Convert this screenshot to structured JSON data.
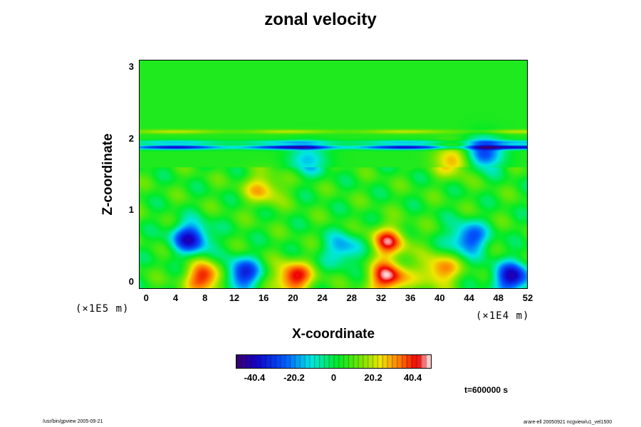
{
  "chart_data": {
    "type": "heatmap",
    "title": "zonal velocity",
    "xlabel": "X-coordinate",
    "ylabel": "Z-coordinate",
    "xlim": [
      -1,
      52
    ],
    "ylim": [
      -0.1,
      3.1
    ],
    "x_ticks": [
      "0",
      "4",
      "8",
      "12",
      "16",
      "20",
      "24",
      "28",
      "32",
      "36",
      "40",
      "44",
      "48",
      "52"
    ],
    "y_ticks": [
      "0",
      "1",
      "2",
      "3"
    ],
    "x_scale_label_left": "(×1E5 m)",
    "x_scale_label_right": "(×1E4 m)",
    "colorbar": {
      "range": [
        -50,
        50
      ],
      "tick_labels": [
        "-40.4",
        "-20.2",
        "0",
        "20.2",
        "40.4"
      ],
      "tick_values": [
        -40.4,
        -20.2,
        0,
        20.2,
        40.4
      ]
    },
    "background_value": 5,
    "features": [
      {
        "x": 6,
        "z": 0.6,
        "value": -38
      },
      {
        "x": 13,
        "z": 0.1,
        "value": -35
      },
      {
        "x": 27,
        "z": 0.45,
        "value": -20
      },
      {
        "x": 33,
        "z": 0.55,
        "value": 40
      },
      {
        "x": 40,
        "z": 0.15,
        "value": 35
      },
      {
        "x": 44,
        "z": 0.6,
        "value": -30
      },
      {
        "x": 50,
        "z": 0.05,
        "value": -40
      },
      {
        "x": 8,
        "z": 0.05,
        "value": 45
      },
      {
        "x": 20,
        "z": 0.05,
        "value": 45
      },
      {
        "x": 33,
        "z": 0.05,
        "value": 48
      },
      {
        "x": 16,
        "z": 1.3,
        "value": 28
      },
      {
        "x": 42,
        "z": 1.7,
        "value": 30
      },
      {
        "x": 22,
        "z": 1.7,
        "value": -15
      },
      {
        "x": 46,
        "z": 1.8,
        "value": -30
      }
    ],
    "bands": [
      {
        "z": 1.88,
        "value": -40
      },
      {
        "z": 1.95,
        "value": -15
      },
      {
        "z": 2.1,
        "value": 20
      }
    ],
    "annotation": "t=600000 s"
  },
  "footer": {
    "left": "/usr/bin/gpview 2005-09-21",
    "right": "arare-ell 20050921 ncgview/u1_vel1500"
  }
}
